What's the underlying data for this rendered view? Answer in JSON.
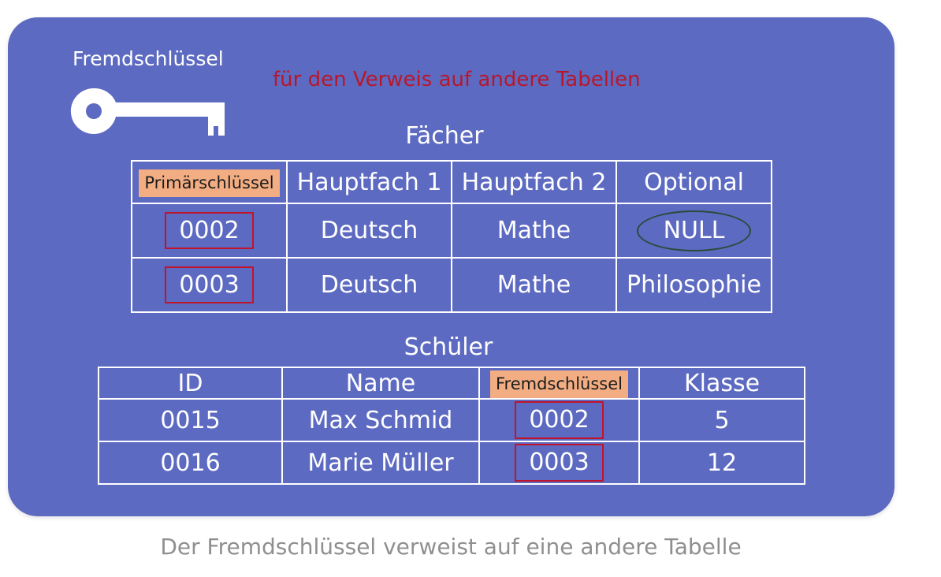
{
  "key_label": "Fremdschlüssel",
  "subtitle": "für den Verweis auf andere Tabellen",
  "key_icon": "key-icon",
  "colors": {
    "background": "#5d6ac1",
    "subtitle": "#b8172b",
    "key_header": "#f2ad83",
    "highlight_box": "#c0142b",
    "null_ellipse": "#2c4a3c",
    "caption": "#8f8f8f"
  },
  "faecher": {
    "title": "Fächer",
    "headers": [
      "Primärschlüssel",
      "Hauptfach 1",
      "Hauptfach 2",
      "Optional"
    ],
    "rows": [
      [
        "0002",
        "Deutsch",
        "Mathe",
        "NULL"
      ],
      [
        "0003",
        "Deutsch",
        "Mathe",
        "Philosophie"
      ]
    ]
  },
  "schueler": {
    "title": "Schüler",
    "headers": [
      "ID",
      "Name",
      "Fremdschlüssel",
      "Klasse"
    ],
    "rows": [
      [
        "0015",
        "Max Schmid",
        "0002",
        "5"
      ],
      [
        "0016",
        "Marie Müller",
        "0003",
        "12"
      ]
    ]
  },
  "caption": "Der Fremdschlüssel verweist auf eine andere Tabelle"
}
